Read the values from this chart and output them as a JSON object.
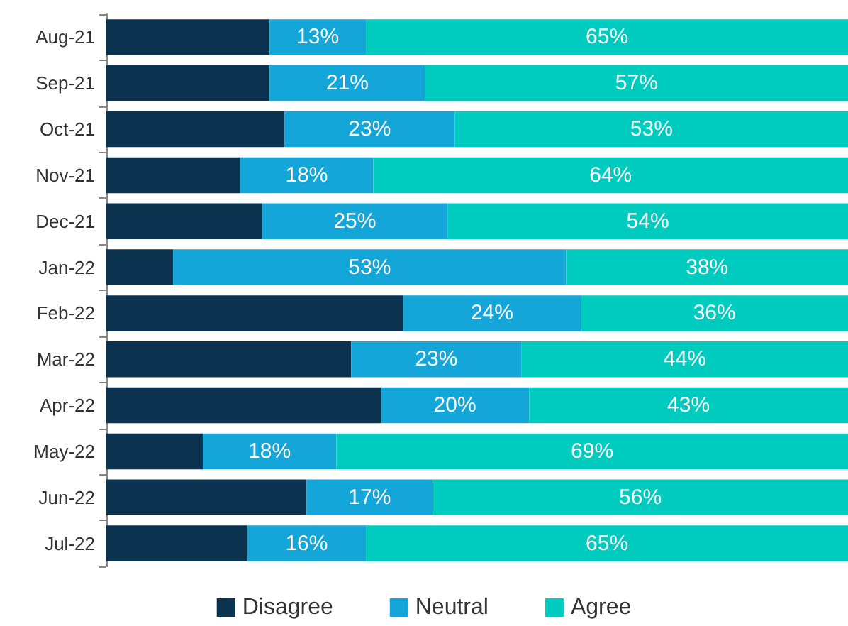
{
  "chart_data": {
    "type": "bar",
    "orientation": "horizontal",
    "stacked": true,
    "categories": [
      "Aug-21",
      "Sep-21",
      "Oct-21",
      "Nov-21",
      "Dec-21",
      "Jan-22",
      "Feb-22",
      "Mar-22",
      "Apr-22",
      "May-22",
      "Jun-22",
      "Jul-22"
    ],
    "xlim": [
      0,
      100
    ],
    "tick_labels": "y",
    "grid": false,
    "legend": "bottom",
    "series": [
      {
        "name": "Disagree",
        "color": "#0b3350",
        "values": [
          22,
          22,
          24,
          18,
          21,
          9,
          40,
          33,
          37,
          13,
          27,
          19
        ],
        "value_labels": [
          null,
          null,
          null,
          null,
          null,
          null,
          null,
          null,
          null,
          null,
          null,
          null
        ]
      },
      {
        "name": "Neutral",
        "color": "#14a6d8",
        "values": [
          13,
          21,
          23,
          18,
          25,
          53,
          24,
          23,
          20,
          18,
          17,
          16
        ],
        "value_labels": [
          "13%",
          "21%",
          "23%",
          "18%",
          "25%",
          "53%",
          "24%",
          "23%",
          "20%",
          "18%",
          "17%",
          "16%"
        ]
      },
      {
        "name": "Agree",
        "color": "#00cbbf",
        "values": [
          65,
          57,
          53,
          64,
          54,
          38,
          36,
          44,
          43,
          69,
          56,
          65
        ],
        "value_labels": [
          "65%",
          "57%",
          "53%",
          "64%",
          "54%",
          "38%",
          "36%",
          "44%",
          "43%",
          "69%",
          "56%",
          "65%"
        ]
      }
    ]
  }
}
